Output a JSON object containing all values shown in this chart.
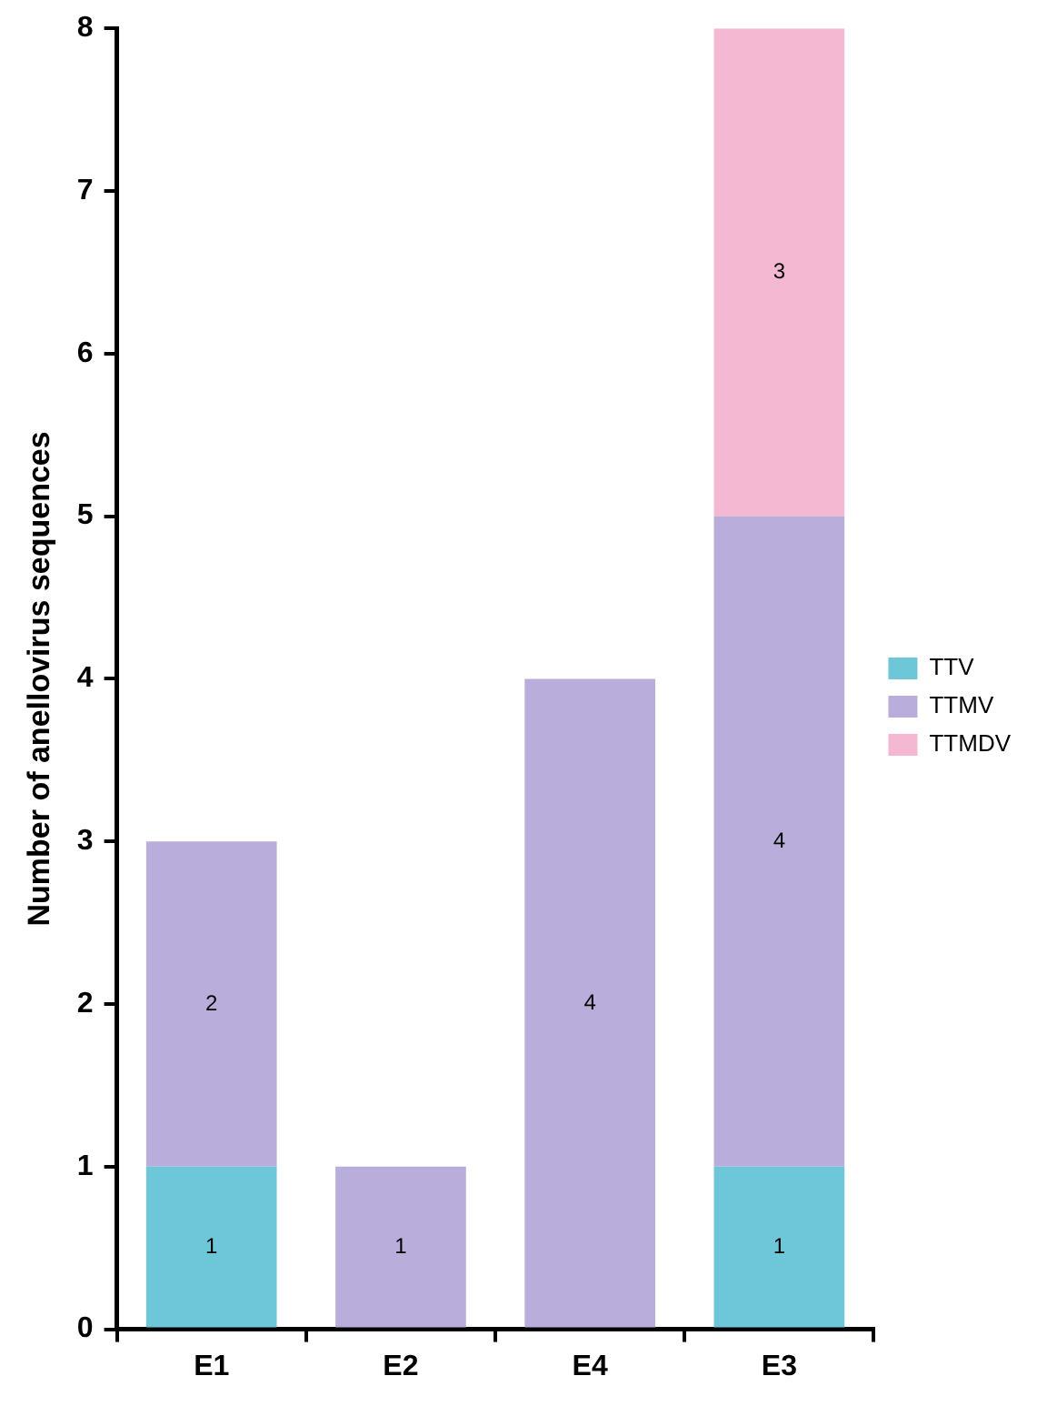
{
  "chart_data": {
    "type": "bar",
    "ylabel": "Number of anellovirus sequences",
    "categories": [
      "E1",
      "E2",
      "E4",
      "E3"
    ],
    "series": [
      {
        "name": "TTV",
        "color": "#6ec6d9",
        "values": [
          1,
          null,
          null,
          1
        ]
      },
      {
        "name": "TTMV",
        "color": "#b9addc",
        "values": [
          2,
          1,
          4,
          4
        ]
      },
      {
        "name": "TTMDV",
        "color": "#f5b8d2",
        "values": [
          null,
          null,
          null,
          3
        ]
      }
    ],
    "stacked": true,
    "ylim": [
      0,
      8
    ],
    "yticks": [
      0,
      1,
      2,
      3,
      4,
      5,
      6,
      7,
      8
    ],
    "grid": false,
    "legend": "right",
    "data_labels": true
  }
}
